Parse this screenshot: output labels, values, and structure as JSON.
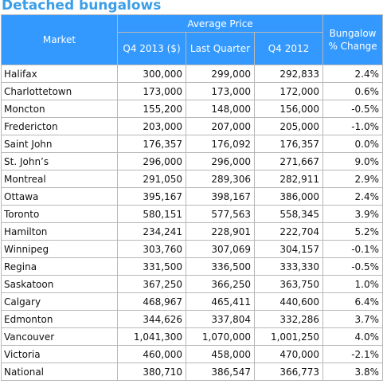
{
  "title": "Detached bungalows",
  "headers": {
    "market": "Market",
    "average_price": "Average Price",
    "q4_2013": "Q4 2013 ($)",
    "last_quarter": "Last Quarter",
    "q4_2012": "Q4 2012",
    "change": "Bungalow % Change"
  },
  "rows": [
    {
      "market": "Halifax",
      "q4_2013": "300,000",
      "last_quarter": "299,000",
      "q4_2012": "292,833",
      "change": "2.4%"
    },
    {
      "market": "Charlottetown",
      "q4_2013": "173,000",
      "last_quarter": "173,000",
      "q4_2012": "172,000",
      "change": "0.6%"
    },
    {
      "market": "Moncton",
      "q4_2013": "155,200",
      "last_quarter": "148,000",
      "q4_2012": "156,000",
      "change": "-0.5%"
    },
    {
      "market": "Fredericton",
      "q4_2013": "203,000",
      "last_quarter": "207,000",
      "q4_2012": "205,000",
      "change": "-1.0%"
    },
    {
      "market": "Saint John",
      "q4_2013": "176,357",
      "last_quarter": "176,092",
      "q4_2012": "176,357",
      "change": "0.0%"
    },
    {
      "market": "St. John’s",
      "q4_2013": "296,000",
      "last_quarter": "296,000",
      "q4_2012": "271,667",
      "change": "9.0%"
    },
    {
      "market": "Montreal",
      "q4_2013": "291,050",
      "last_quarter": "289,306",
      "q4_2012": "282,911",
      "change": "2.9%"
    },
    {
      "market": "Ottawa",
      "q4_2013": "395,167",
      "last_quarter": "398,167",
      "q4_2012": "386,000",
      "change": "2.4%"
    },
    {
      "market": "Toronto",
      "q4_2013": "580,151",
      "last_quarter": "577,563",
      "q4_2012": "558,345",
      "change": "3.9%"
    },
    {
      "market": "Hamilton",
      "q4_2013": "234,241",
      "last_quarter": "228,901",
      "q4_2012": "222,704",
      "change": "5.2%"
    },
    {
      "market": "Winnipeg",
      "q4_2013": "303,760",
      "last_quarter": "307,069",
      "q4_2012": "304,157",
      "change": "-0.1%"
    },
    {
      "market": "Regina",
      "q4_2013": "331,500",
      "last_quarter": "336,500",
      "q4_2012": "333,330",
      "change": "-0.5%"
    },
    {
      "market": "Saskatoon",
      "q4_2013": "367,250",
      "last_quarter": "366,250",
      "q4_2012": "363,750",
      "change": "1.0%"
    },
    {
      "market": "Calgary",
      "q4_2013": "468,967",
      "last_quarter": "465,411",
      "q4_2012": "440,600",
      "change": "6.4%"
    },
    {
      "market": "Edmonton",
      "q4_2013": "344,626",
      "last_quarter": "337,804",
      "q4_2012": "332,286",
      "change": "3.7%"
    },
    {
      "market": "Vancouver",
      "q4_2013": "1,041,300",
      "last_quarter": "1,070,000",
      "q4_2012": "1,001,250",
      "change": "4.0%"
    },
    {
      "market": "Victoria",
      "q4_2013": "460,000",
      "last_quarter": "458,000",
      "q4_2012": "470,000",
      "change": "-2.1%"
    },
    {
      "market": "National",
      "q4_2013": "380,710",
      "last_quarter": "386,547",
      "q4_2012": "366,773",
      "change": "3.8%"
    }
  ],
  "colors": {
    "title": "#3a9ee8",
    "header_background": "#3399ff",
    "header_text": "#ffffff",
    "grid": "#b8b8b8"
  }
}
